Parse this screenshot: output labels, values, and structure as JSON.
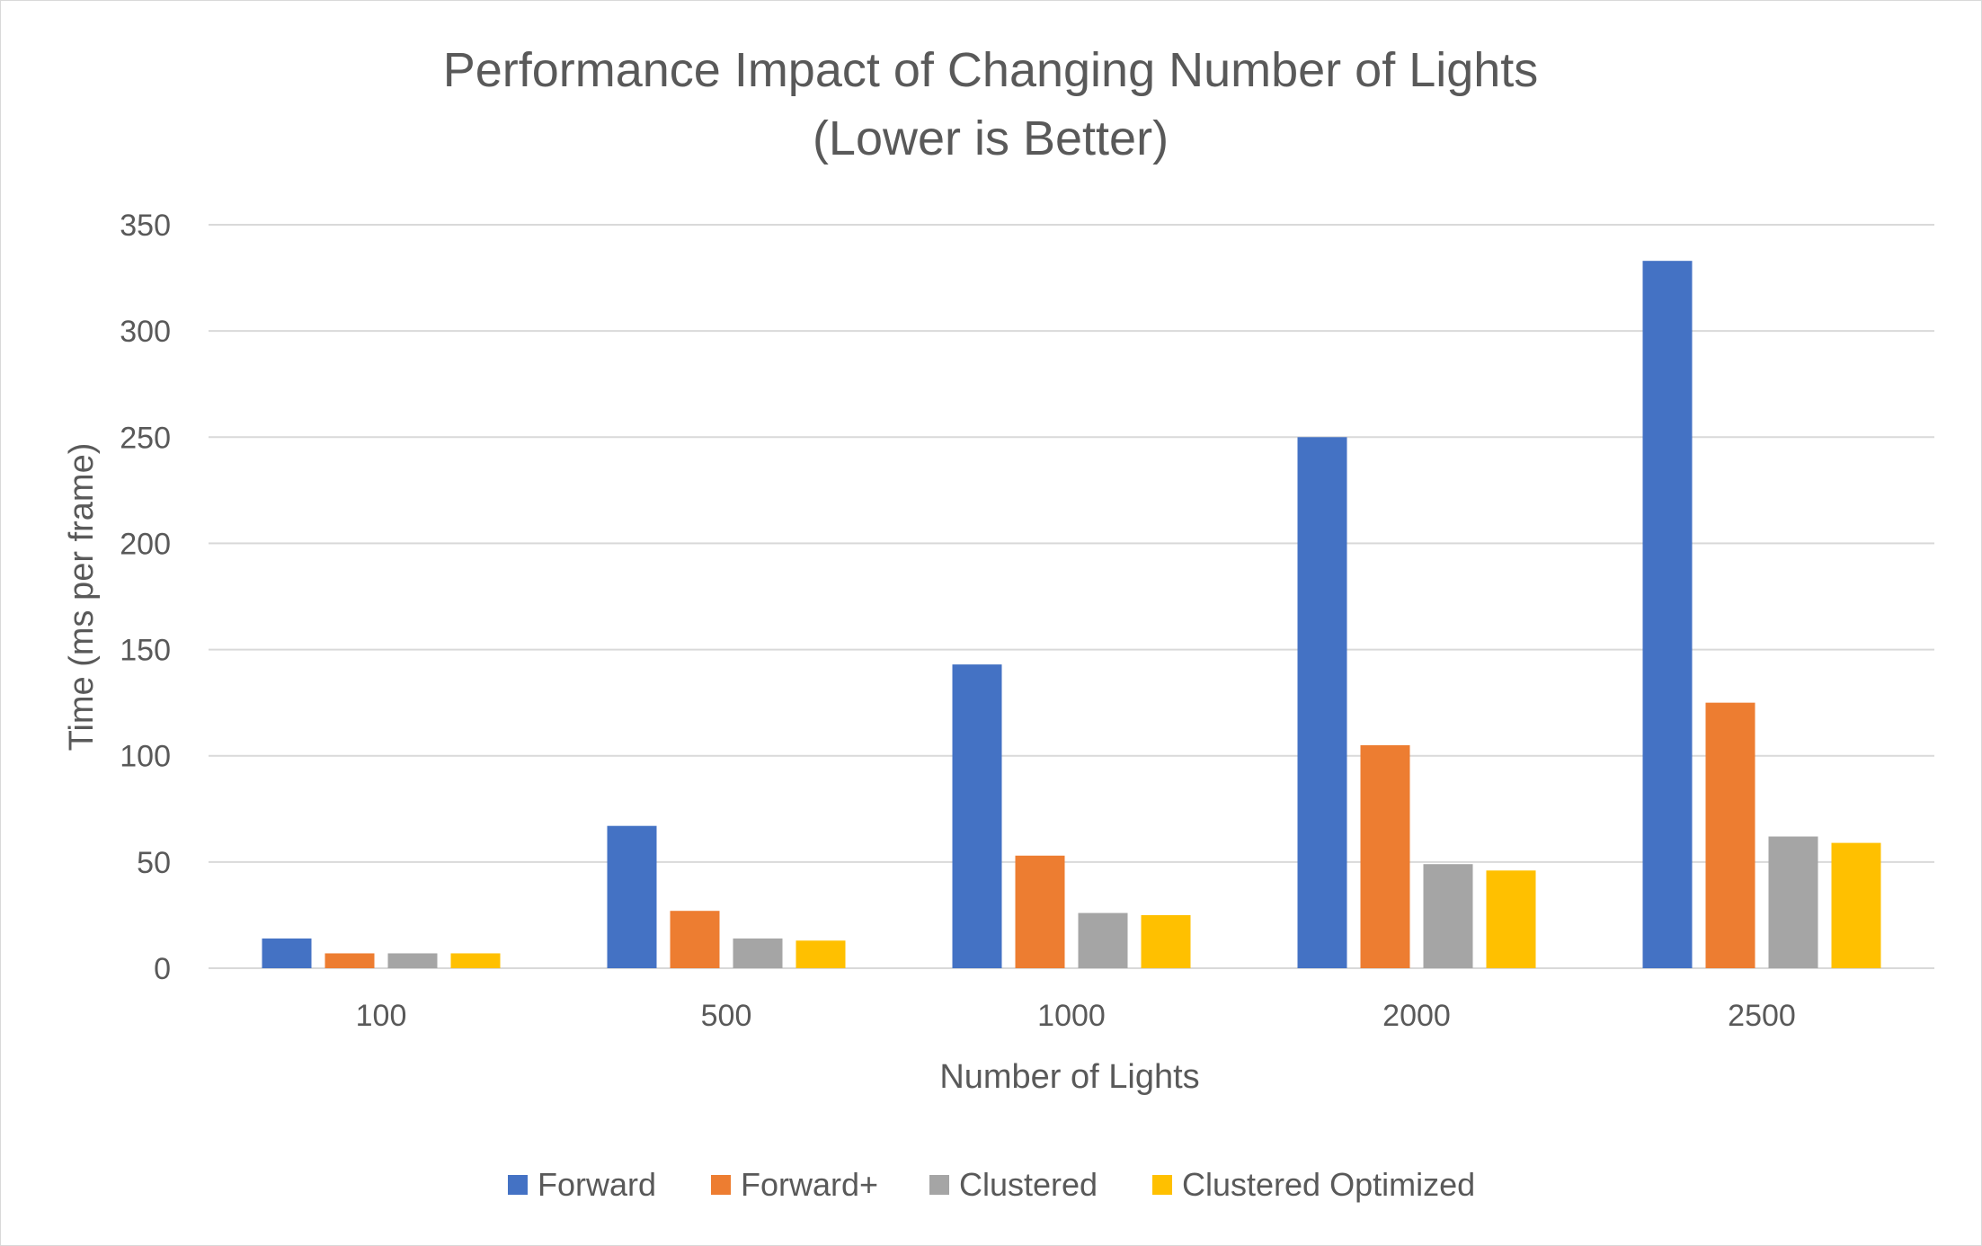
{
  "chart_data": {
    "type": "bar",
    "title": "Performance Impact of Changing Number of Lights",
    "subtitle": "(Lower is Better)",
    "xlabel": "Number of Lights",
    "ylabel": "Time (ms per frame)",
    "categories": [
      "100",
      "500",
      "1000",
      "2000",
      "2500"
    ],
    "ylim": [
      0,
      350
    ],
    "yticks": [
      "0",
      "50",
      "100",
      "150",
      "200",
      "250",
      "300",
      "350"
    ],
    "grid": true,
    "legend_position": "bottom",
    "series": [
      {
        "name": "Forward",
        "color": "#4472C4",
        "values": [
          14,
          67,
          143,
          250,
          333
        ]
      },
      {
        "name": "Forward+",
        "color": "#ED7D31",
        "values": [
          7,
          27,
          53,
          105,
          125
        ]
      },
      {
        "name": "Clustered",
        "color": "#A5A5A5",
        "values": [
          7,
          14,
          26,
          49,
          62
        ]
      },
      {
        "name": "Clustered Optimized",
        "color": "#FFC000",
        "values": [
          7,
          13,
          25,
          46,
          59
        ]
      }
    ]
  }
}
